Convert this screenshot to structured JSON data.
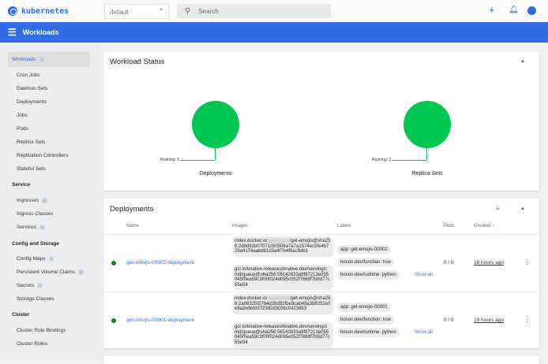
{
  "header": {
    "logo": "kubernetes",
    "namespace": "default",
    "search_placeholder": "Search",
    "icons": [
      "plus-icon",
      "bell-icon",
      "account-icon"
    ]
  },
  "toolbar": {
    "title": "Workloads"
  },
  "sidebar": {
    "workloads": {
      "label": "Workloads",
      "badge": "N"
    },
    "workload_items": [
      "Cron Jobs",
      "Daemon Sets",
      "Deployments",
      "Jobs",
      "Pods",
      "Replica Sets",
      "Replication Controllers",
      "Stateful Sets"
    ],
    "service": {
      "label": "Service",
      "items": [
        {
          "label": "Ingresses",
          "badge": "N"
        },
        {
          "label": "Ingress Classes",
          "badge": ""
        },
        {
          "label": "Services",
          "badge": "N"
        }
      ]
    },
    "config": {
      "label": "Config and Storage",
      "items": [
        {
          "label": "Config Maps",
          "badge": "N"
        },
        {
          "label": "Persistent Volume Claims",
          "badge": "N"
        },
        {
          "label": "Secrets",
          "badge": "N"
        },
        {
          "label": "Storage Classes",
          "badge": ""
        }
      ]
    },
    "cluster": {
      "label": "Cluster",
      "items": [
        "Cluster Role Bindings",
        "Cluster Roles"
      ]
    }
  },
  "status": {
    "title": "Workload Status",
    "charts": [
      {
        "label": "Deployments",
        "legend": "Running: 2",
        "color": "#00c752"
      },
      {
        "label": "Replica Sets",
        "legend": "Running: 2",
        "color": "#00c752"
      }
    ]
  },
  "deployments": {
    "title": "Deployments",
    "columns": [
      "Name",
      "Images",
      "Labels",
      "Pods",
      "Created ↑"
    ],
    "rows": [
      {
        "name": "get-emojis-00002-deployment",
        "image1_pre": "index.docker.io/",
        "image1_post": "/get-emojis@sha256:2d0d91b07071c50506a7a7a1574ec5fe4b729a4174aabdb1d3a4f7b4f6ac9db1",
        "image2": "gcr.io/knative-releases/knative.dev/serving/cmd/queue@sha256:56142833a9f87213e055045f0ea59c3f00f024d095c052f7669f7b9d77c55e54",
        "labels": [
          "app: get-emojis-00002",
          "boson.dev/function: true",
          "boson.dev/runtime: python"
        ],
        "show_all": "Show all",
        "pods": "0 / 0",
        "created": "18 hours ago"
      },
      {
        "name": "get-emojis-00001-deployment",
        "image1_pre": "index.docker.io/",
        "image1_post": "/get-emojis@sha256:2a06325f2784d39d92fbe9cab49a3b8252e0e8a2e0bfd3723d2d3c06c0423853",
        "image2": "gcr.io/knative-releases/knative.dev/serving/cmd/queue@sha256:56142833a9f87213e055045f0ea59c3f00f024d095c052f7669f7b9d77c55e54",
        "labels": [
          "app: get-emojis-00001",
          "boson.dev/function: true",
          "boson.dev/runtime: python"
        ],
        "show_all": "Show all",
        "pods": "0 / 0",
        "created": "19 hours ago"
      }
    ]
  }
}
